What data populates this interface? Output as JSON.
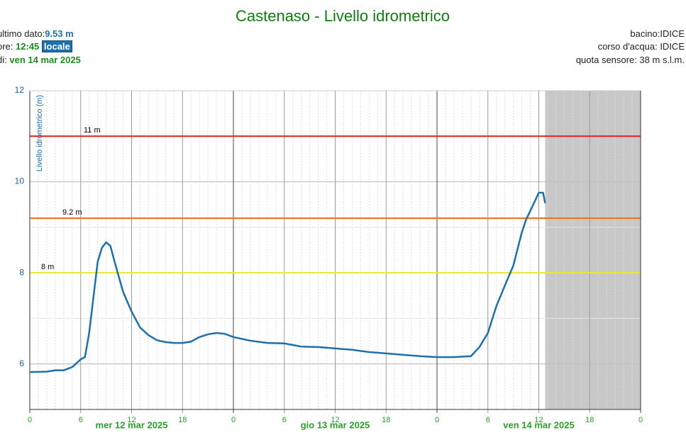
{
  "header": {
    "last_label": "ultimo dato:",
    "last_value": "9.53 m",
    "time_label": "ore:",
    "time_value": "12:45",
    "time_badge": "locale",
    "date_label": "di:",
    "date_value": "ven 14 mar 2025",
    "basin": "bacino:IDICE",
    "river": "corso d'acqua: IDICE",
    "altitude": "quota sensore: 38 m s.l.m."
  },
  "chart_data": {
    "type": "line",
    "title": "Castenaso - Livello idrometrico",
    "y_label": "Livello idrometrico (m)",
    "x": [
      0,
      2,
      3,
      4,
      5,
      6,
      6.5,
      7,
      7.5,
      8,
      8.5,
      9,
      9.5,
      10,
      11,
      12,
      13,
      14,
      15,
      16,
      17,
      18,
      19,
      20,
      21,
      22,
      23,
      24,
      26,
      28,
      30,
      32,
      34,
      36,
      38,
      40,
      42,
      44,
      46,
      48,
      50,
      52,
      53,
      54,
      55,
      56,
      57,
      58,
      58.5,
      59,
      59.5,
      60,
      60.5,
      60.75
    ],
    "series": [
      {
        "name": "Livello idrometrico",
        "color": "#1f6fa8",
        "values": [
          5.82,
          5.83,
          5.86,
          5.86,
          5.93,
          6.1,
          6.15,
          6.68,
          7.46,
          8.24,
          8.55,
          8.67,
          8.59,
          8.24,
          7.58,
          7.15,
          6.8,
          6.63,
          6.52,
          6.48,
          6.46,
          6.46,
          6.49,
          6.59,
          6.65,
          6.68,
          6.66,
          6.59,
          6.51,
          6.46,
          6.45,
          6.38,
          6.37,
          6.34,
          6.31,
          6.26,
          6.23,
          6.2,
          6.17,
          6.15,
          6.15,
          6.17,
          6.37,
          6.68,
          7.27,
          7.72,
          8.16,
          8.89,
          9.17,
          9.36,
          9.56,
          9.76,
          9.76,
          9.53
        ]
      }
    ],
    "thresholds": [
      {
        "values": 11,
        "value_labels": "11 m",
        "color": "#e02020"
      },
      {
        "values": 9.2,
        "value_labels": "9.2 m",
        "color": "#f07020"
      },
      {
        "values": 8,
        "value_labels": "8 m",
        "color": "#e8e830"
      }
    ],
    "xlim": [
      0,
      72
    ],
    "ylim": [
      5,
      12
    ],
    "yticks": [
      6,
      8,
      10,
      12
    ],
    "xticks": [
      0,
      6,
      12,
      18,
      {
        "value": 24,
        "label": "0"
      },
      {
        "value": 30,
        "label": "6"
      },
      {
        "value": 36,
        "label": "12"
      },
      {
        "value": 42,
        "label": "18"
      },
      {
        "value": 48,
        "label": "0"
      },
      {
        "value": 54,
        "label": "6"
      },
      {
        "value": 60,
        "label": "12"
      },
      {
        "value": 66,
        "label": "18"
      },
      {
        "value": 72,
        "label": "0"
      }
    ],
    "day_labels": [
      "mer 12 mar 2025",
      "gio 13 mar 2025",
      "ven 14 mar 2025"
    ],
    "grid": true,
    "future_shading": true
  }
}
